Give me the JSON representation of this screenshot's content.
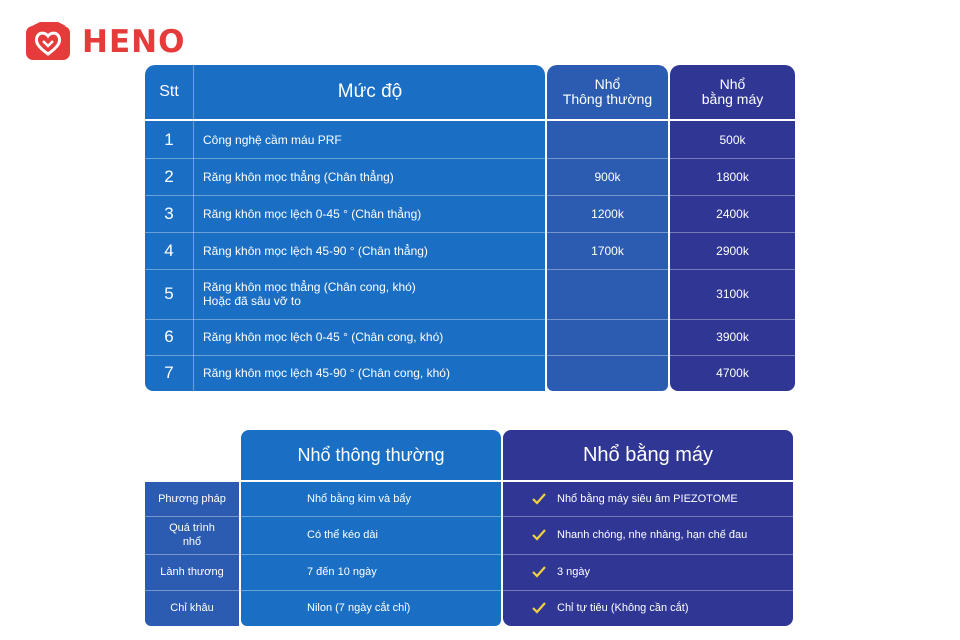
{
  "brand": {
    "name": "HENO",
    "color": "#e63b3b",
    "logo_icon": "heart-box-logo-icon"
  },
  "price_table": {
    "headers": {
      "stt": "Stt",
      "muc_do": "Mức độ",
      "col3_line1": "Nhổ",
      "col3_line2": "Thông thường",
      "col4_line1": "Nhổ",
      "col4_line2": "bằng máy"
    },
    "rows": [
      {
        "stt": "1",
        "muc_do_line1": "Công nghệ cầm máu PRF",
        "muc_do_line2": "",
        "thong_thuong": "",
        "bang_may": "500k"
      },
      {
        "stt": "2",
        "muc_do_line1": "Răng khôn mọc thẳng (Chân thẳng)",
        "muc_do_line2": "",
        "thong_thuong": "900k",
        "bang_may": "1800k"
      },
      {
        "stt": "3",
        "muc_do_line1": "Răng khôn mọc lệch 0-45 ° (Chân thẳng)",
        "muc_do_line2": "",
        "thong_thuong": "1200k",
        "bang_may": "2400k"
      },
      {
        "stt": "4",
        "muc_do_line1": "Răng khôn mọc lệch 45-90 ° (Chân thẳng)",
        "muc_do_line2": "",
        "thong_thuong": "1700k",
        "bang_may": "2900k"
      },
      {
        "stt": "5",
        "muc_do_line1": "Răng khôn mọc thẳng (Chân cong, khó)",
        "muc_do_line2": "Hoặc đã sâu vỡ to",
        "thong_thuong": "",
        "bang_may": "3100k"
      },
      {
        "stt": "6",
        "muc_do_line1": "Răng khôn mọc lệch 0-45 ° (Chân cong, khó)",
        "muc_do_line2": "",
        "thong_thuong": "",
        "bang_may": "3900k"
      },
      {
        "stt": "7",
        "muc_do_line1": "Răng khôn mọc lệch 45-90 ° (Chân cong, khó)",
        "muc_do_line2": "",
        "thong_thuong": "",
        "bang_may": "4700k"
      }
    ]
  },
  "comparison_table": {
    "headers": {
      "thong_thuong": "Nhổ thông thường",
      "bang_may": "Nhổ bằng máy"
    },
    "check_icon": "check-icon",
    "check_color": "#f2d13c",
    "rows": [
      {
        "label_line1": "Phương pháp",
        "label_line2": "",
        "thong_thuong": "Nhổ bằng kìm và bẩy",
        "bang_may": "Nhổ bằng máy siêu âm PIEZOTOME"
      },
      {
        "label_line1": "Quá trình",
        "label_line2": "nhổ",
        "thong_thuong": "Có thể kéo dài",
        "bang_may": "Nhanh chóng, nhẹ nhàng, hạn chế đau"
      },
      {
        "label_line1": "Lành thương",
        "label_line2": "",
        "thong_thuong": "7 đến 10 ngày",
        "bang_may": "3 ngày"
      },
      {
        "label_line1": "Chỉ khâu",
        "label_line2": "",
        "thong_thuong": "Nilon (7 ngày cắt chỉ)",
        "bang_may": "Chỉ tự tiêu  (Không cần cắt)"
      }
    ]
  },
  "colors": {
    "blue": "#1a6fc4",
    "mid_blue": "#2b5cb1",
    "indigo": "#2f3694"
  }
}
